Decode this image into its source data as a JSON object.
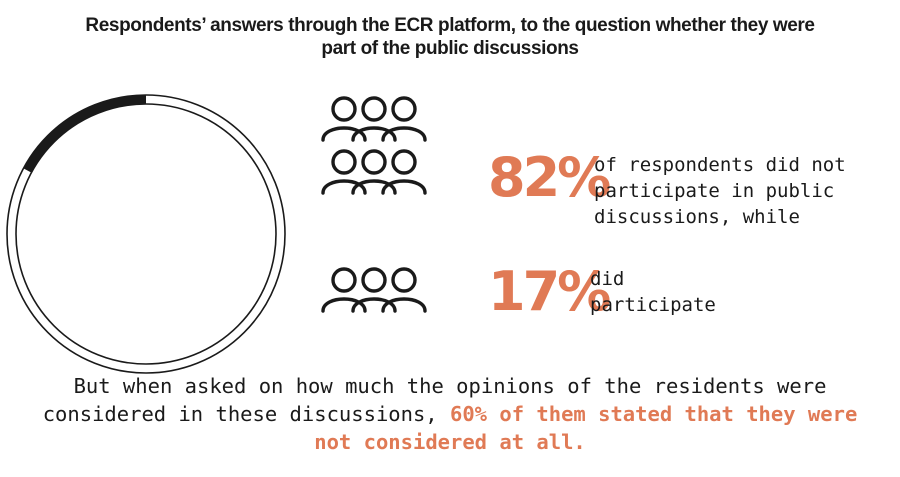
{
  "title": {
    "line1": "Respondents’ answers through the ECR platform, to the question whether they were",
    "line2": "part of the public discussions"
  },
  "chart_data": {
    "type": "pie",
    "title": "Respondents’ answers through the ECR platform, to the question whether they were part of the public discussions",
    "slices": [
      {
        "label": "did not participate in public discussions",
        "value": 82
      },
      {
        "label": "did participate",
        "value": 17
      }
    ],
    "units": "%"
  },
  "stats": {
    "no": {
      "percent": "82%",
      "line1": "of respondents did not",
      "line2": "participate in public",
      "line3": "discussions, while"
    },
    "yes": {
      "percent": "17%",
      "line1": "did",
      "line2": "participate"
    }
  },
  "note": {
    "part1": "But when asked on how much the opinions of the residents were considered in these discussions,",
    "highlight": "60% of them stated that they were not considered at all."
  },
  "icons": {
    "people_group_large": "people-group-icon",
    "people_group_small": "people-group-icon"
  },
  "colors": {
    "accent": "#e07a55",
    "text": "#1a1a1a",
    "ring_dark": "#1a1a1a"
  }
}
